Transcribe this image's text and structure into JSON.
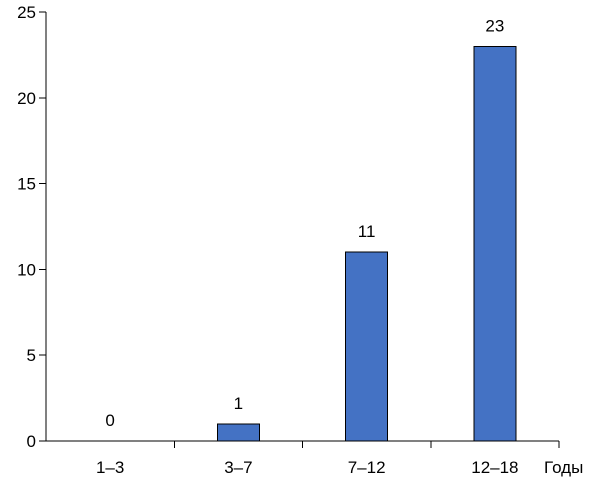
{
  "chart_data": {
    "type": "bar",
    "title": "",
    "xlabel": "Годы",
    "ylabel": "",
    "categories": [
      "1–3",
      "3–7",
      "7–12",
      "12–18"
    ],
    "values": [
      0,
      1,
      11,
      23
    ],
    "value_labels": [
      "0",
      "1",
      "11",
      "23"
    ],
    "ylim": [
      0,
      25
    ],
    "yticks": [
      0,
      5,
      10,
      15,
      20,
      25
    ],
    "ytick_labels": [
      "0",
      "5",
      "10",
      "15",
      "20",
      "25"
    ],
    "grid": false,
    "legend": "none",
    "bar_color": "#4472C4"
  }
}
